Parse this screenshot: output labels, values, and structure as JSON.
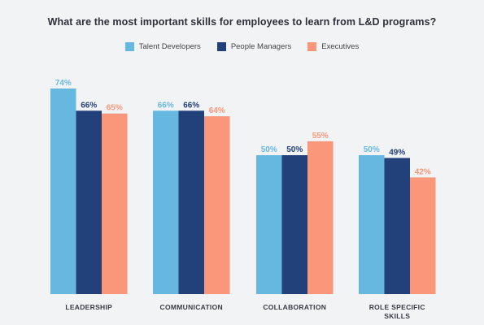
{
  "chart_data": {
    "type": "bar",
    "title": "What are the most important skills for employees to learn from L&D programs?",
    "categories": [
      "LEADERSHIP",
      "COMMUNICATION",
      "COLLABORATION",
      "ROLE SPECIFIC SKILLS"
    ],
    "category_lines": [
      [
        "LEADERSHIP"
      ],
      [
        "COMMUNICATION"
      ],
      [
        "COLLABORATION"
      ],
      [
        "ROLE SPECIFIC",
        "SKILLS"
      ]
    ],
    "series": [
      {
        "name": "Talent Developers",
        "color": "#66b8e0",
        "values": [
          74,
          66,
          50,
          50
        ]
      },
      {
        "name": "People Managers",
        "color": "#22407a",
        "values": [
          66,
          66,
          50,
          49
        ]
      },
      {
        "name": "Executives",
        "color": "#fa9679",
        "values": [
          65,
          64,
          55,
          42
        ]
      }
    ],
    "value_suffix": "%",
    "ylim": [
      0,
      100
    ],
    "grid": false,
    "legend_position": "top-center"
  }
}
